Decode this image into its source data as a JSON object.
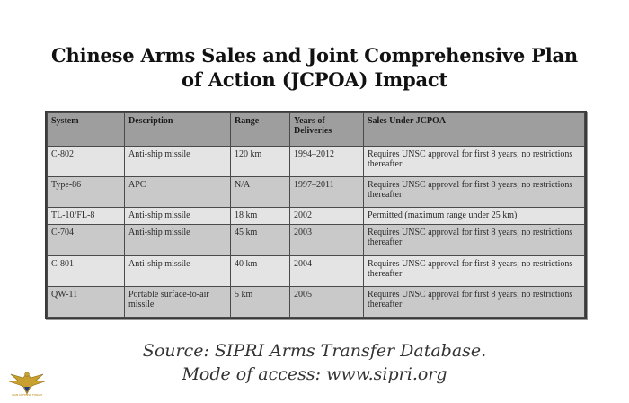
{
  "title": {
    "line1": "Chinese Arms Sales and Joint Comprehensive Plan",
    "line2": "of Action (JCPOA) Impact"
  },
  "table": {
    "headers": [
      "System",
      "Description",
      "Range",
      "Years of Deliveries",
      "Sales Under JCPOA"
    ],
    "rows": [
      [
        "C-802",
        "Anti-ship missile",
        "120 km",
        "1994–2012",
        "Requires UNSC approval for first 8 years; no restrictions thereafter"
      ],
      [
        "Type-86",
        "APC",
        "N/A",
        "1997–2011",
        "Requires UNSC approval for first 8 years; no restrictions thereafter"
      ],
      [
        "TL-10/FL-8",
        "Anti-ship missile",
        "18 km",
        "2002",
        "Permitted (maximum range under 25 km)"
      ],
      [
        "C-704",
        "Anti-ship missile",
        "45 km",
        "2003",
        "Requires UNSC approval for first 8 years; no restrictions thereafter"
      ],
      [
        "C-801",
        "Anti-ship missile",
        "40 km",
        "2004",
        "Requires UNSC approval for first 8 years; no restrictions thereafter"
      ],
      [
        "QW-11",
        "Portable surface-to-air missile",
        "5 km",
        "2005",
        "Requires UNSC approval for first 8 years; no restrictions thereafter"
      ]
    ]
  },
  "source": {
    "line1": "Source: SIPRI Arms Transfer Database.",
    "line2": "Mode of access: www.sipri.org"
  },
  "logo": {
    "icon": "eagle-emblem-icon",
    "text": "IRAN DEFENSE FORUM",
    "color": "#c8a030"
  }
}
